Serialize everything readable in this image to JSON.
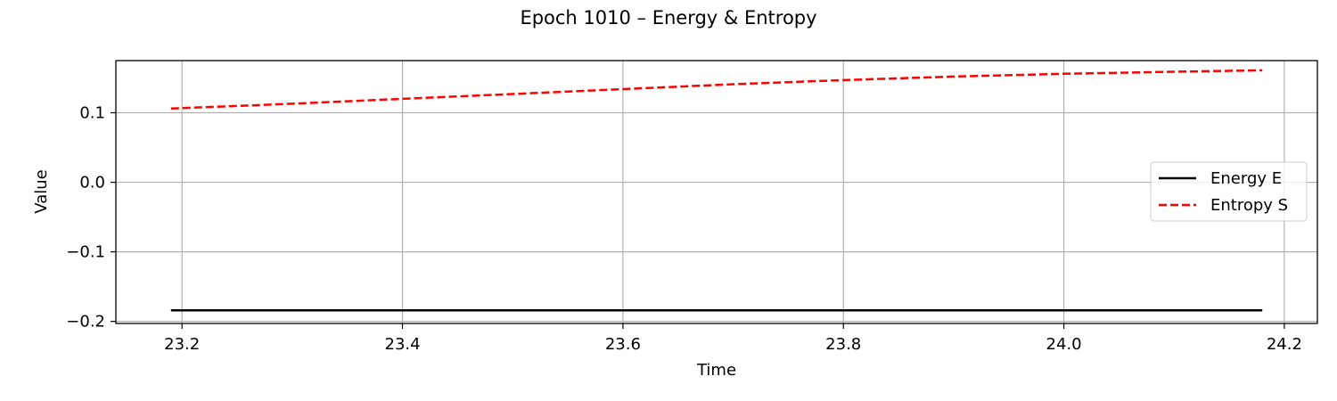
{
  "chart_data": {
    "type": "line",
    "title": "Epoch 1010 – Energy & Entropy",
    "xlabel": "Time",
    "ylabel": "Value",
    "xlim": [
      23.14,
      24.23
    ],
    "ylim": [
      -0.203,
      0.175
    ],
    "xticks": [
      23.2,
      23.4,
      23.6,
      23.8,
      24.0,
      24.2
    ],
    "xtick_labels": [
      "23.2",
      "23.4",
      "23.6",
      "23.8",
      "24.0",
      "24.2"
    ],
    "yticks": [
      -0.2,
      -0.1,
      0.0,
      0.1
    ],
    "ytick_labels": [
      "−0.2",
      "−0.1",
      "0.0",
      "0.1"
    ],
    "grid": true,
    "legend_position": "center-right",
    "series": [
      {
        "name": "Energy E",
        "color": "#000000",
        "style": "solid",
        "x": [
          23.19,
          23.4,
          23.6,
          23.8,
          24.0,
          24.18
        ],
        "y": [
          -0.184,
          -0.184,
          -0.184,
          -0.184,
          -0.184,
          -0.184
        ]
      },
      {
        "name": "Entropy S",
        "color": "#ff0000",
        "style": "dashed",
        "x": [
          23.19,
          23.3,
          23.4,
          23.5,
          23.6,
          23.7,
          23.8,
          23.9,
          24.0,
          24.1,
          24.18
        ],
        "y": [
          0.106,
          0.113,
          0.12,
          0.127,
          0.134,
          0.141,
          0.147,
          0.152,
          0.156,
          0.159,
          0.161
        ]
      }
    ]
  }
}
